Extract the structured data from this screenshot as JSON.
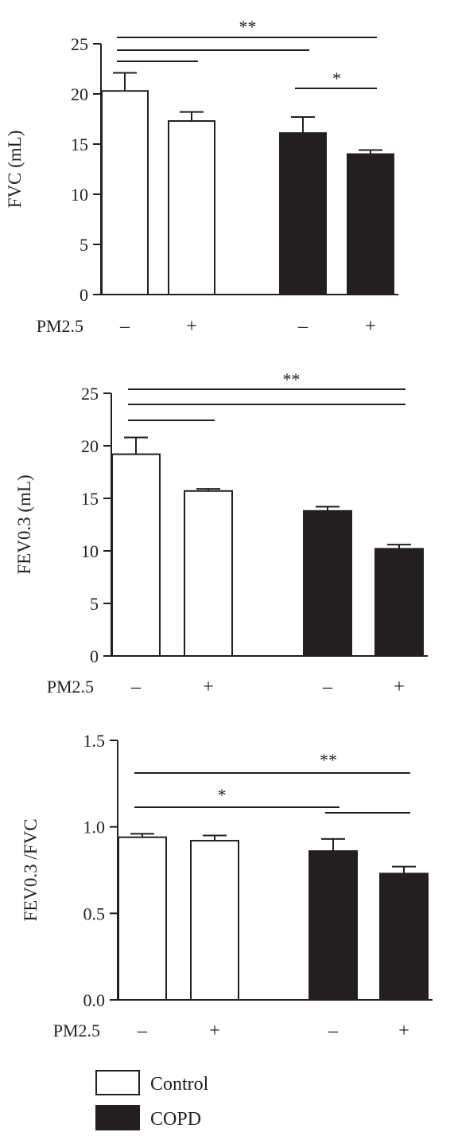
{
  "colors": {
    "control": "#ffffff",
    "copd": "#231f20",
    "ink": "#231f20"
  },
  "legend": {
    "items": [
      {
        "label": "Control",
        "color": "#ffffff"
      },
      {
        "label": "COPD",
        "color": "#231f20"
      }
    ]
  },
  "chart_data": [
    {
      "type": "bar",
      "ylabel": "FVC (mL)",
      "ylim": [
        0,
        25
      ],
      "yticks": [
        "0",
        "5",
        "10",
        "15",
        "20",
        "25"
      ],
      "x_row_label": "PM2.5",
      "categories": [
        "–",
        "+",
        "–",
        "+"
      ],
      "series": [
        {
          "name": "Control",
          "values": [
            20.3,
            17.3,
            null,
            null
          ],
          "errors": [
            1.8,
            0.9,
            null,
            null
          ]
        },
        {
          "name": "COPD",
          "values": [
            null,
            null,
            16.1,
            14.0
          ],
          "errors": [
            null,
            null,
            1.6,
            0.4
          ]
        }
      ],
      "significance": [
        {
          "from": 0,
          "to": 3,
          "label": "**"
        },
        {
          "from": 0,
          "to": 2,
          "label": ""
        },
        {
          "from": 0,
          "to": 1,
          "label": ""
        },
        {
          "from": 2,
          "to": 3,
          "label": "*"
        }
      ]
    },
    {
      "type": "bar",
      "ylabel": "FEV0.3 (mL)",
      "ylim": [
        0,
        25
      ],
      "yticks": [
        "0",
        "5",
        "10",
        "15",
        "20",
        "25"
      ],
      "x_row_label": "PM2.5",
      "categories": [
        "–",
        "+",
        "–",
        "+"
      ],
      "series": [
        {
          "name": "Control",
          "values": [
            19.2,
            15.7,
            null,
            null
          ],
          "errors": [
            1.6,
            0.2,
            null,
            null
          ]
        },
        {
          "name": "COPD",
          "values": [
            null,
            null,
            13.8,
            10.2
          ],
          "errors": [
            null,
            null,
            0.4,
            0.4
          ]
        }
      ],
      "significance": [
        {
          "from": 0,
          "to": 3,
          "label": "**"
        },
        {
          "from": 0,
          "to": 2,
          "label": ""
        },
        {
          "from": 0,
          "to": 1,
          "label": ""
        },
        {
          "from": 2,
          "to": 3,
          "label": ""
        }
      ]
    },
    {
      "type": "bar",
      "ylabel": "FEV0.3 /FVC",
      "ylim": [
        0,
        1.5
      ],
      "yticks": [
        "0.0",
        "0.5",
        "1.0",
        "1.5"
      ],
      "x_row_label": "PM2.5",
      "categories": [
        "–",
        "+",
        "–",
        "+"
      ],
      "series": [
        {
          "name": "Control",
          "values": [
            0.94,
            0.92,
            null,
            null
          ],
          "errors": [
            0.02,
            0.03,
            null,
            null
          ]
        },
        {
          "name": "COPD",
          "values": [
            null,
            null,
            0.86,
            0.73
          ],
          "errors": [
            null,
            null,
            0.07,
            0.04
          ]
        }
      ],
      "significance": [
        {
          "from": 0,
          "to": 3,
          "label": "**"
        },
        {
          "from": 0,
          "to": 2,
          "label": "*"
        },
        {
          "from": 2,
          "to": 3,
          "label": ""
        }
      ]
    }
  ]
}
